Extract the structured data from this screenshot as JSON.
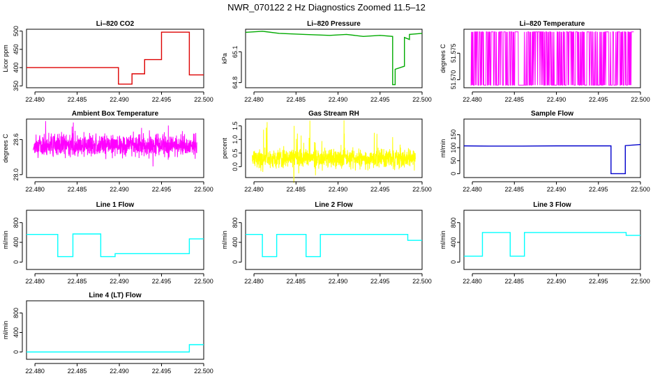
{
  "title": "NWR_070122  2 Hz Diagnostics Zoomed 11.5–12",
  "chart_data": [
    {
      "type": "line",
      "title": "Li–820 CO2",
      "ylabel": "Licor ppm",
      "color": "#dd0000",
      "xlim": [
        22.479,
        22.5
      ],
      "ylim": [
        345,
        505
      ],
      "xticks": [
        "22.480",
        "22.485",
        "22.490",
        "22.495",
        "22.500"
      ],
      "yticks": [
        "350",
        "400",
        "450",
        "500"
      ],
      "x": [
        22.479,
        22.48,
        22.485,
        22.4899,
        22.4899,
        22.4915,
        22.4915,
        22.493,
        22.493,
        22.495,
        22.495,
        22.4983,
        22.4983,
        22.5
      ],
      "y": [
        400,
        400,
        400,
        400,
        355,
        355,
        383,
        383,
        422,
        422,
        497,
        497,
        380,
        380
      ]
    },
    {
      "type": "line",
      "title": "Li–820 Pressure",
      "ylabel": "kPa",
      "color": "#00aa00",
      "xlim": [
        22.479,
        22.5
      ],
      "ylim": [
        64.75,
        65.32
      ],
      "xticks": [
        "22.480",
        "22.485",
        "22.490",
        "22.495",
        "22.500"
      ],
      "yticks": [
        "64.8",
        "65.1"
      ],
      "x": [
        22.479,
        22.481,
        22.483,
        22.486,
        22.489,
        22.491,
        22.493,
        22.495,
        22.4965,
        22.4965,
        22.4968,
        22.4968,
        22.4979,
        22.4979,
        22.4985,
        22.4985,
        22.5
      ],
      "y": [
        65.29,
        65.3,
        65.28,
        65.27,
        65.26,
        65.27,
        65.25,
        65.26,
        65.25,
        64.78,
        64.78,
        64.93,
        64.96,
        65.24,
        65.22,
        65.27,
        65.28
      ]
    },
    {
      "type": "line",
      "title": "Li–820 Temperature",
      "ylabel": "degrees C",
      "color": "#ff00ff",
      "xlim": [
        22.479,
        22.5
      ],
      "ylim": [
        51.5685,
        51.5795
      ],
      "xticks": [
        "22.480",
        "22.485",
        "22.490",
        "22.495",
        "22.500"
      ],
      "yticks": [
        "51.570",
        "51.575"
      ],
      "noise": {
        "kind": "binary",
        "low": 51.569,
        "high": 51.579,
        "n": 420,
        "seed": 3
      }
    },
    {
      "type": "line",
      "title": "Ambient Box Temperature",
      "ylabel": "degrees C",
      "color": "#ff00ff",
      "xlim": [
        22.479,
        22.5
      ],
      "ylim": [
        27.95,
        28.95
      ],
      "xticks": [
        "22.480",
        "22.485",
        "22.490",
        "22.495",
        "22.500"
      ],
      "yticks": [
        "28.0",
        "28.6"
      ],
      "noise": {
        "kind": "gauss",
        "mean": 28.5,
        "sd": 0.09,
        "spike": 0.3,
        "n": 1100,
        "seed": 7
      }
    },
    {
      "type": "line",
      "title": "Gas Stream RH",
      "ylabel": "percent",
      "color": "#ffff00",
      "xlim": [
        22.479,
        22.5
      ],
      "ylim": [
        -0.4,
        1.75
      ],
      "xticks": [
        "22.480",
        "22.485",
        "22.490",
        "22.495",
        "22.500"
      ],
      "yticks": [
        "0.0",
        "0.5",
        "1.0",
        "1.5"
      ],
      "noise": {
        "kind": "gauss",
        "mean": 0.3,
        "sd": 0.17,
        "spike": 0.9,
        "n": 1100,
        "seed": 11
      }
    },
    {
      "type": "line",
      "title": "Sample Flow",
      "ylabel": "ml/min",
      "color": "#0000cc",
      "xlim": [
        22.479,
        22.5
      ],
      "ylim": [
        -15,
        210
      ],
      "xticks": [
        "22.480",
        "22.485",
        "22.490",
        "22.495",
        "22.500"
      ],
      "yticks": [
        "0",
        "50",
        "100",
        "150"
      ],
      "x": [
        22.479,
        22.482,
        22.486,
        22.49,
        22.4965,
        22.4965,
        22.4982,
        22.4982,
        22.5
      ],
      "y": [
        107,
        106,
        106,
        107,
        107,
        0,
        0,
        108,
        112
      ]
    },
    {
      "type": "line",
      "title": "Line 1 Flow",
      "ylabel": "ml/min",
      "color": "#00ffff",
      "xlim": [
        22.479,
        22.5
      ],
      "ylim": [
        -150,
        1050
      ],
      "xticks": [
        "22.480",
        "22.485",
        "22.490",
        "22.495",
        "22.500"
      ],
      "yticks": [
        "0",
        "400",
        "800"
      ],
      "x": [
        22.479,
        22.4827,
        22.4827,
        22.4845,
        22.4845,
        22.4878,
        22.4878,
        22.4895,
        22.4895,
        22.4983,
        22.4983,
        22.5
      ],
      "y": [
        560,
        560,
        110,
        110,
        570,
        570,
        110,
        110,
        170,
        170,
        470,
        470
      ]
    },
    {
      "type": "line",
      "title": "Line 2 Flow",
      "ylabel": "ml/min",
      "color": "#00ffff",
      "xlim": [
        22.479,
        22.5
      ],
      "ylim": [
        -150,
        1050
      ],
      "xticks": [
        "22.480",
        "22.485",
        "22.490",
        "22.495",
        "22.500"
      ],
      "yticks": [
        "0",
        "400",
        "800"
      ],
      "x": [
        22.479,
        22.481,
        22.481,
        22.4827,
        22.4827,
        22.4862,
        22.4862,
        22.4879,
        22.4879,
        22.4983,
        22.4983,
        22.5
      ],
      "y": [
        560,
        560,
        110,
        110,
        560,
        560,
        110,
        110,
        560,
        560,
        440,
        440
      ]
    },
    {
      "type": "line",
      "title": "Line 3 Flow",
      "ylabel": "ml/min",
      "color": "#00ffff",
      "xlim": [
        22.479,
        22.5
      ],
      "ylim": [
        -150,
        1050
      ],
      "xticks": [
        "22.480",
        "22.485",
        "22.490",
        "22.495",
        "22.500"
      ],
      "yticks": [
        "0",
        "400",
        "800"
      ],
      "x": [
        22.479,
        22.4812,
        22.4812,
        22.4845,
        22.4845,
        22.4862,
        22.4862,
        22.4983,
        22.4983,
        22.5
      ],
      "y": [
        120,
        120,
        600,
        600,
        120,
        120,
        600,
        600,
        540,
        540
      ]
    },
    {
      "type": "line",
      "title": "Line 4 (LT) Flow",
      "ylabel": "ml/min",
      "color": "#00ffff",
      "xlim": [
        22.479,
        22.5
      ],
      "ylim": [
        -150,
        1050
      ],
      "xticks": [
        "22.480",
        "22.485",
        "22.490",
        "22.495",
        "22.500"
      ],
      "yticks": [
        "0",
        "400",
        "800"
      ],
      "x": [
        22.479,
        22.4983,
        22.4983,
        22.5
      ],
      "y": [
        0,
        0,
        150,
        150
      ]
    }
  ]
}
